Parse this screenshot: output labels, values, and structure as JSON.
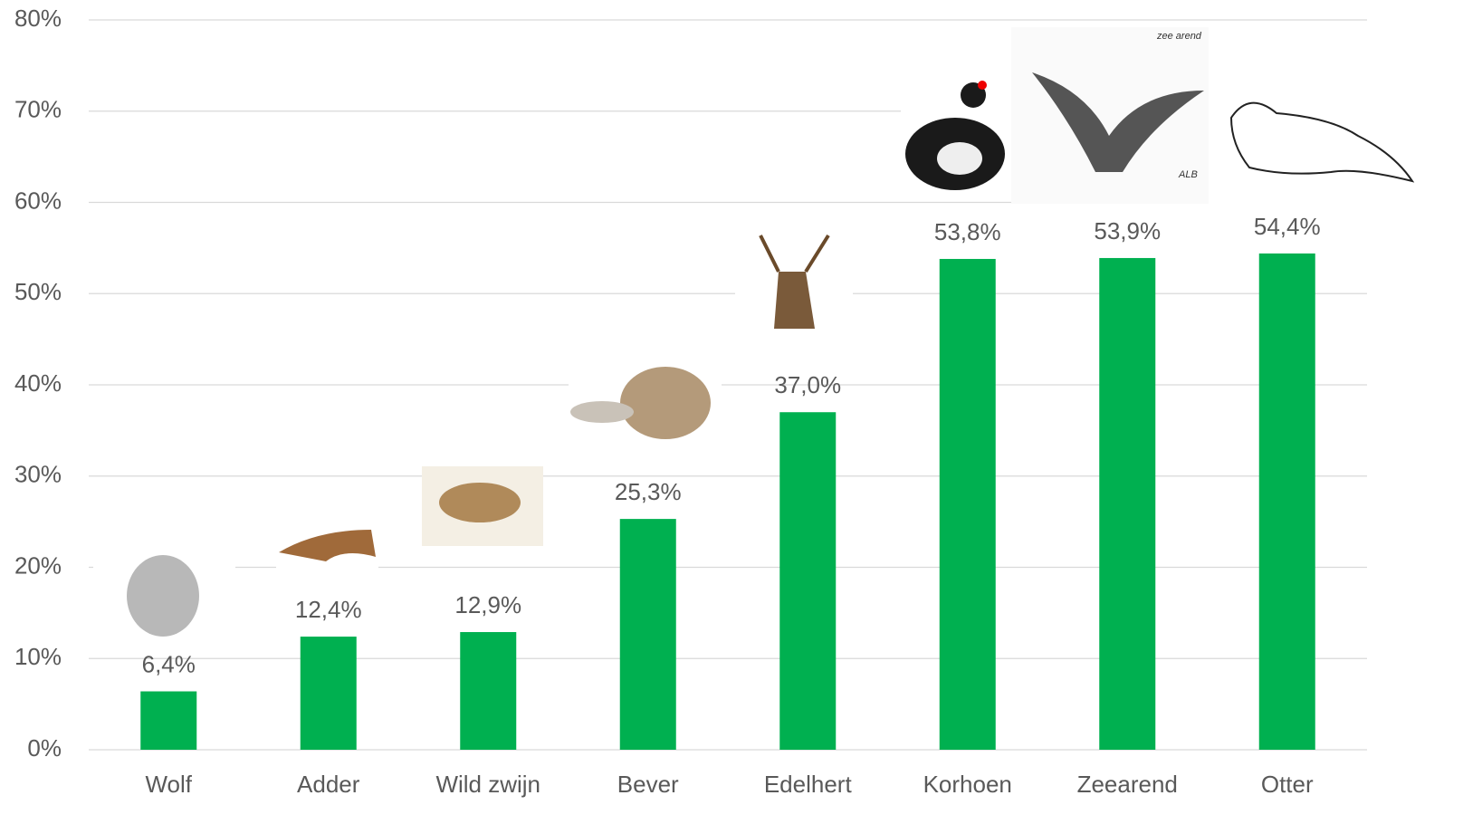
{
  "chart_data": {
    "type": "bar",
    "categories": [
      "Wolf",
      "Adder",
      "Wild zwijn",
      "Bever",
      "Edelhert",
      "Korhoen",
      "Zeearend",
      "Otter"
    ],
    "values": [
      6.4,
      12.4,
      12.9,
      25.3,
      37.0,
      53.8,
      53.9,
      54.4
    ],
    "value_labels": [
      "6,4%",
      "12,4%",
      "12,9%",
      "25,3%",
      "37,0%",
      "53,8%",
      "53,9%",
      "54,4%"
    ],
    "color": "#00b050",
    "ylim": [
      0,
      80
    ],
    "yticks": [
      {
        "value": 0,
        "label": "0%"
      },
      {
        "value": 10,
        "label": "10%"
      },
      {
        "value": 20,
        "label": "20%"
      },
      {
        "value": 30,
        "label": "30%"
      },
      {
        "value": 40,
        "label": "40%"
      },
      {
        "value": 50,
        "label": "50%"
      },
      {
        "value": 60,
        "label": "60%"
      },
      {
        "value": 70,
        "label": "70%"
      },
      {
        "value": 80,
        "label": "80%"
      }
    ],
    "grid": true,
    "annotations": [
      "zee arend",
      "ALB"
    ]
  }
}
